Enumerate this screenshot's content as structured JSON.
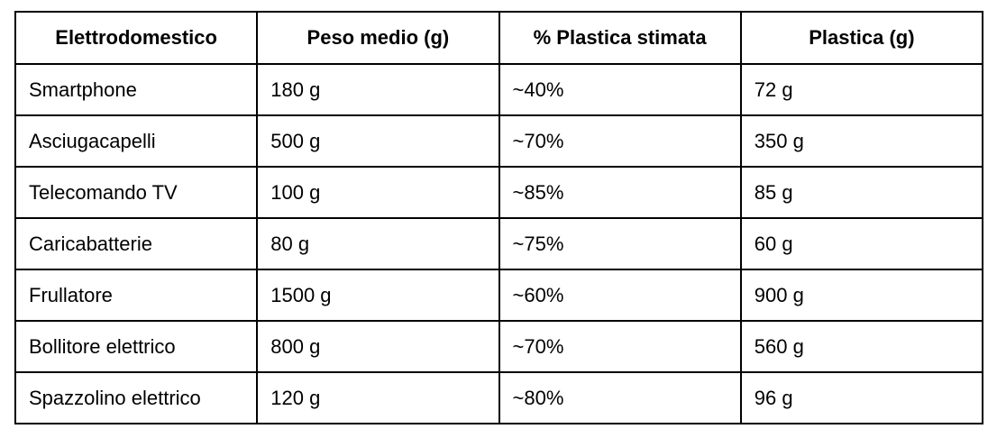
{
  "table": {
    "header": [
      "Elettrodomestico",
      "Peso medio (g)",
      "% Plastica stimata",
      "Plastica (g)"
    ],
    "rows": [
      [
        "Smartphone",
        "180 g",
        "~40%",
        "72 g"
      ],
      [
        "Asciugacapelli",
        "500 g",
        "~70%",
        "350 g"
      ],
      [
        "Telecomando TV",
        "100 g",
        "~85%",
        "85 g"
      ],
      [
        "Caricabatterie",
        "80 g",
        "~75%",
        "60 g"
      ],
      [
        "Frullatore",
        "1500 g",
        "~60%",
        "900 g"
      ],
      [
        "Bollitore elettrico",
        "800 g",
        "~70%",
        "560 g"
      ],
      [
        "Spazzolino elettrico",
        "120 g",
        "~80%",
        "96 g"
      ]
    ]
  }
}
